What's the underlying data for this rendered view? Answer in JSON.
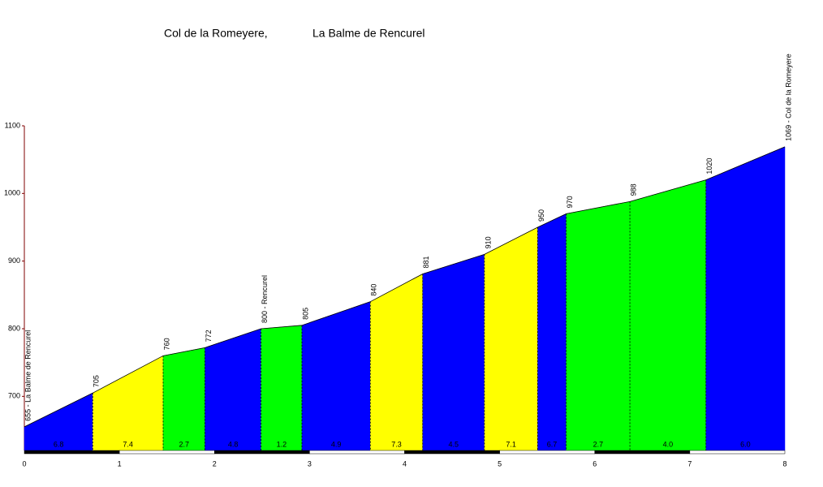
{
  "chart_data": {
    "type": "area",
    "title": "Col de la Romeyere,",
    "subtitle": "La Balme de Rencurel",
    "x": [
      0,
      0.72,
      1.46,
      1.9,
      2.49,
      2.92,
      3.64,
      4.19,
      4.84,
      5.4,
      5.7,
      6.37,
      7.17,
      8
    ],
    "values": [
      655,
      705,
      760,
      772,
      800,
      805,
      840,
      881,
      910,
      950,
      970,
      988,
      1020,
      1069
    ],
    "value_labels": [
      "655 - La Balme de Rencurel",
      "705",
      "760",
      "772",
      "800 - Rencurel",
      "805",
      "840",
      "881",
      "910",
      "950",
      "970",
      "988",
      "1020",
      "1069 - Col de la Romeyere"
    ],
    "segments": {
      "values": [
        6.8,
        7.4,
        2.7,
        4.8,
        1.2,
        4.9,
        7.3,
        4.5,
        7.1,
        6.7,
        2.7,
        4.0,
        6.0
      ],
      "value_labels": [
        "6.8",
        "7.4",
        "2.7",
        "4.8",
        "1.2",
        "4.9",
        "7.3",
        "4.5",
        "7.1",
        "6.7",
        "2.7",
        "4.0",
        "6.0"
      ],
      "colors": [
        "#0000ff",
        "#ffff00",
        "#00ff00",
        "#0000ff",
        "#00ff00",
        "#0000ff",
        "#ffff00",
        "#0000ff",
        "#ffff00",
        "#0000ff",
        "#00ff00",
        "#00ff00",
        "#0000ff"
      ]
    },
    "xlim": [
      0,
      8
    ],
    "xticks": [
      0,
      1,
      2,
      3,
      4,
      5,
      6,
      7,
      8
    ],
    "ylim": [
      620,
      1100
    ],
    "yticks": [
      700,
      800,
      900,
      1000,
      1100
    ]
  }
}
